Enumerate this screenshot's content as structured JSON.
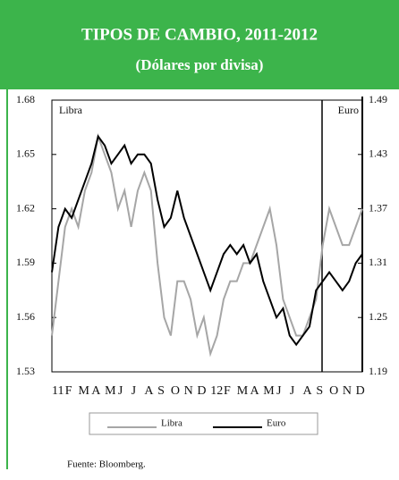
{
  "chart_data": {
    "type": "line",
    "title": "TIPOS DE CAMBIO, 2011-2012",
    "subtitle": "(Dólares por divisa)",
    "y_label": "Libra",
    "y2_label": "Euro",
    "source": "Fuente: Bloomberg.",
    "categories": [
      "11",
      null,
      "F",
      null,
      "M",
      null,
      "A",
      null,
      "M",
      null,
      "J",
      null,
      "J",
      null,
      "A",
      null,
      "S",
      null,
      "O",
      null,
      "N",
      null,
      "D",
      null,
      "12",
      null,
      "F",
      null,
      "M",
      null,
      "A",
      null,
      "M",
      null,
      "J",
      null,
      "J",
      null,
      "A",
      null,
      "S",
      null,
      "O",
      null,
      "N",
      null,
      "D",
      null
    ],
    "series": [
      {
        "name": "Libra",
        "color": "#a6a6a6",
        "axis": "y",
        "values": [
          1.55,
          1.58,
          1.61,
          1.62,
          1.61,
          1.63,
          1.64,
          1.66,
          1.65,
          1.64,
          1.62,
          1.63,
          1.61,
          1.63,
          1.64,
          1.63,
          1.59,
          1.56,
          1.55,
          1.58,
          1.58,
          1.57,
          1.55,
          1.56,
          1.54,
          1.55,
          1.57,
          1.58,
          1.58,
          1.59,
          1.59,
          1.6,
          1.61,
          1.62,
          1.6,
          1.57,
          1.56,
          1.55,
          1.55,
          1.56,
          1.57,
          1.6,
          1.62,
          1.61,
          1.6,
          1.6,
          1.61,
          1.62
        ]
      },
      {
        "name": "Euro",
        "color": "#000000",
        "axis": "y2",
        "values": [
          1.3,
          1.35,
          1.37,
          1.36,
          1.38,
          1.4,
          1.42,
          1.45,
          1.44,
          1.42,
          1.43,
          1.44,
          1.42,
          1.43,
          1.43,
          1.42,
          1.38,
          1.35,
          1.36,
          1.39,
          1.36,
          1.34,
          1.32,
          1.3,
          1.28,
          1.3,
          1.32,
          1.33,
          1.32,
          1.33,
          1.31,
          1.32,
          1.29,
          1.27,
          1.25,
          1.26,
          1.23,
          1.22,
          1.23,
          1.24,
          1.28,
          1.29,
          1.3,
          1.29,
          1.28,
          1.29,
          1.31,
          1.32
        ]
      }
    ],
    "ylim": [
      1.53,
      1.68
    ],
    "yticks": [
      1.53,
      1.56,
      1.59,
      1.62,
      1.65,
      1.68
    ],
    "y2lim": [
      1.19,
      1.49
    ],
    "y2ticks": [
      1.19,
      1.25,
      1.31,
      1.37,
      1.43,
      1.49
    ],
    "grid": false
  }
}
